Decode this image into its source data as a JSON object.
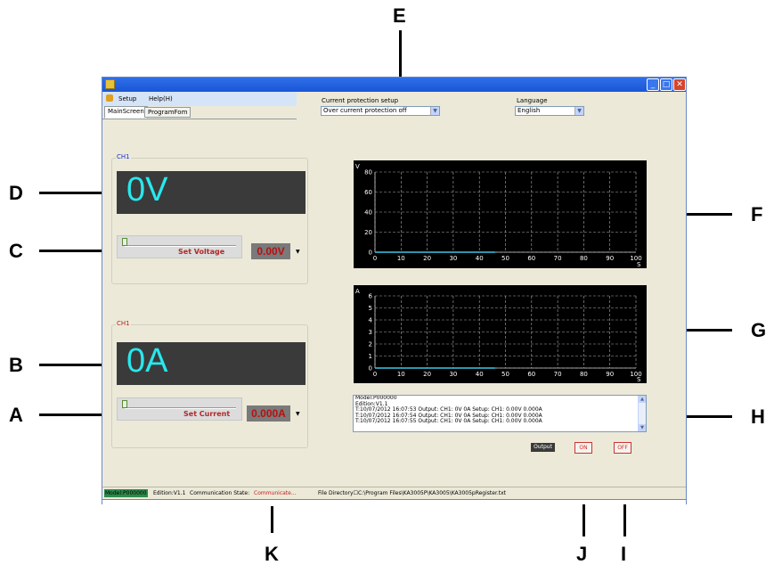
{
  "callouts": {
    "A": "A",
    "B": "B",
    "C": "C",
    "D": "D",
    "E": "E",
    "F": "F",
    "G": "G",
    "H": "H",
    "I": "I",
    "J": "J",
    "K": "K"
  },
  "window": {
    "titlebar_buttons": {
      "minimize": "_",
      "maximize": "□",
      "close": "✕"
    }
  },
  "menu": {
    "setup": "Setup",
    "help": "Help(H)"
  },
  "tabs": [
    {
      "label": "MainScreen",
      "active": true
    },
    {
      "label": "ProgramFom",
      "active": false
    }
  ],
  "protection": {
    "label": "Current protection setup",
    "value": "Over current protection off"
  },
  "language": {
    "label": "Language",
    "value": "English"
  },
  "voltage": {
    "group_title": "CH1",
    "display": "0V",
    "slider_label": "Set Voltage",
    "slider_level": 0,
    "set_value": "0.00V"
  },
  "current": {
    "group_title": "CH1",
    "display": "0A",
    "slider_label": "Set Current",
    "slider_level": 0,
    "set_value": "0.000A"
  },
  "chart_data": [
    {
      "type": "line",
      "ylabel": "V",
      "xlabel": "S",
      "ylim": [
        0,
        80
      ],
      "xlim": [
        0,
        100
      ],
      "yticks": [
        "0",
        "20",
        "40",
        "60",
        "80"
      ],
      "xticks": [
        "0",
        "10",
        "20",
        "30",
        "40",
        "50",
        "60",
        "70",
        "80",
        "90",
        "100"
      ],
      "grid": true,
      "series": [
        {
          "x": [
            0,
            46
          ],
          "y": [
            0,
            0
          ],
          "color": "#3ac8e8"
        }
      ]
    },
    {
      "type": "line",
      "ylabel": "A",
      "xlabel": "S",
      "ylim": [
        0,
        6
      ],
      "xlim": [
        0,
        100
      ],
      "yticks": [
        "0",
        "1",
        "2",
        "3",
        "4",
        "5",
        "6"
      ],
      "xticks": [
        "0",
        "10",
        "20",
        "30",
        "40",
        "50",
        "60",
        "70",
        "80",
        "90",
        "100"
      ],
      "grid": true,
      "series": [
        {
          "x": [
            0,
            46
          ],
          "y": [
            0,
            0
          ],
          "color": "#3ac8e8"
        }
      ]
    }
  ],
  "log": {
    "lines": [
      "Model:P000000",
      "Edition:V1.1",
      "T:10/07/2012 16:07:53 Output: CH1:     0V    0A Setup: CH1:  0.00V 0.000A",
      "T:10/07/2012 16:07:54 Output: CH1:     0V    0A Setup: CH1:  0.00V 0.000A",
      "T:10/07/2012 16:07:55 Output: CH1:     0V    0A Setup: CH1:  0.00V 0.000A"
    ]
  },
  "output": {
    "label": "Output",
    "on": "ON",
    "off": "OFF"
  },
  "status": {
    "model": "Model:P000000",
    "edition": "Edition:V1.1",
    "comm_label": "Communication State:",
    "comm_value": "Communicate...",
    "file_dir": "File Directory☐C:\\Program Files\\KA3005P\\KA3005\\KA3005pRegister.txt"
  },
  "colors": {
    "display_text": "#28e8ee",
    "set_value_text": "#b81010",
    "graph_line": "#3ac8e8",
    "titlebar": "#1a56d6"
  }
}
